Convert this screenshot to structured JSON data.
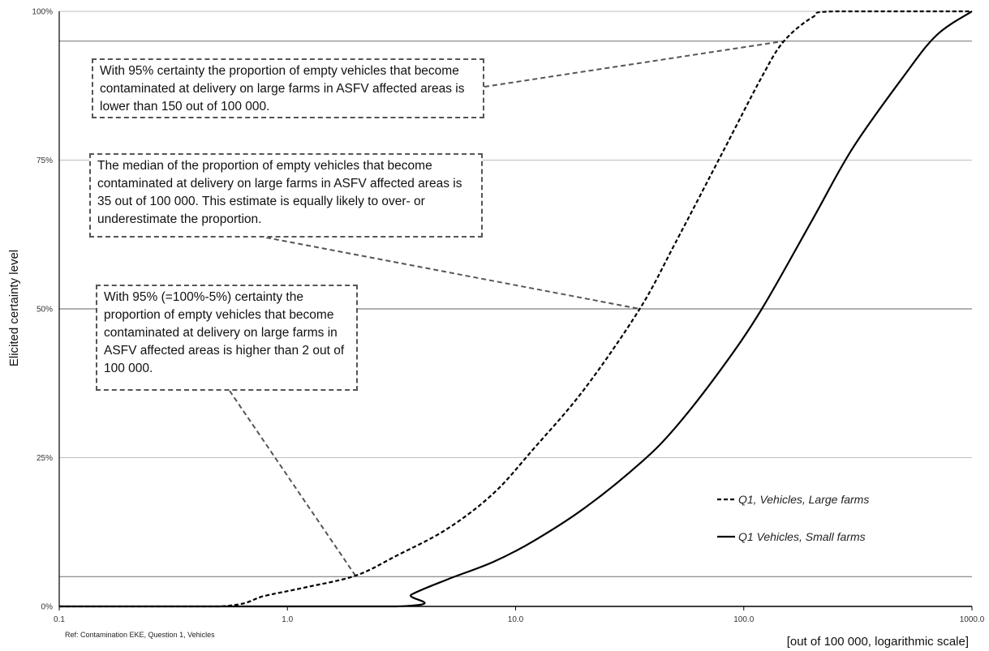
{
  "chart_data": {
    "type": "line",
    "x_scale": "log",
    "xlim": [
      0.1,
      1000.0
    ],
    "ylim": [
      0,
      100
    ],
    "x_ticks": [
      "0.1",
      "1.0",
      "10.0",
      "100.0",
      "1000.0"
    ],
    "y_ticks": [
      "0%",
      "25%",
      "50%",
      "75%",
      "100%"
    ],
    "xlabel": "[out of 100 000, logarithmic scale]",
    "ylabel": "Elicited certainty level",
    "grid": "horizontal",
    "reference_lines": [
      5,
      50,
      95
    ],
    "legend_position": "bottom-right",
    "footnote": "Ref: Contamination EKE, Question 1, Vehicles",
    "series": [
      {
        "name": "Q1, Vehicles, Large farms",
        "style": "dashed",
        "color": "#000000",
        "x": [
          0.1,
          0.5,
          0.8,
          1.2,
          2.0,
          3.0,
          5.0,
          8.0,
          12.0,
          20.0,
          35.0,
          50.0,
          80.0,
          120.0,
          150.0,
          200.0,
          250.0,
          1000.0
        ],
        "y": [
          0,
          0,
          1.8,
          3.2,
          5.2,
          8.5,
          13,
          19,
          26.5,
          36.5,
          50,
          61,
          76,
          89,
          95,
          99,
          100,
          100
        ]
      },
      {
        "name": "Q1 Vehicles, Small farms",
        "style": "solid",
        "color": "#000000",
        "x": [
          0.1,
          3.0,
          3.5,
          5.0,
          8.0,
          12.0,
          20.0,
          35.0,
          50.0,
          80.0,
          120.0,
          200.0,
          300.0,
          500.0,
          700.0,
          1000.0
        ],
        "y": [
          0,
          0,
          2,
          4.5,
          7.5,
          11,
          16.5,
          24,
          30,
          40,
          50,
          65,
          77,
          89,
          96,
          100
        ]
      }
    ],
    "annotations": [
      {
        "text": "With 95% certainty the proportion of empty vehicles that become contaminated at delivery on large farms in ASFV affected areas is lower than 150 out of 100 000.",
        "target_x": 150.0,
        "target_y": 95
      },
      {
        "text": "The median of the proportion of empty vehicles that become contaminated at delivery on large farms in ASFV affected areas is 35 out of 100 000. This estimate is equally likely to over- or underestimate the proportion.",
        "target_x": 35.0,
        "target_y": 50
      },
      {
        "text": "With 95% (=100%-5%) certainty the proportion of empty vehicles that become contaminated at delivery on large farms in ASFV affected areas is higher than 2 out of 100 000.",
        "target_x": 2.0,
        "target_y": 5
      }
    ]
  }
}
